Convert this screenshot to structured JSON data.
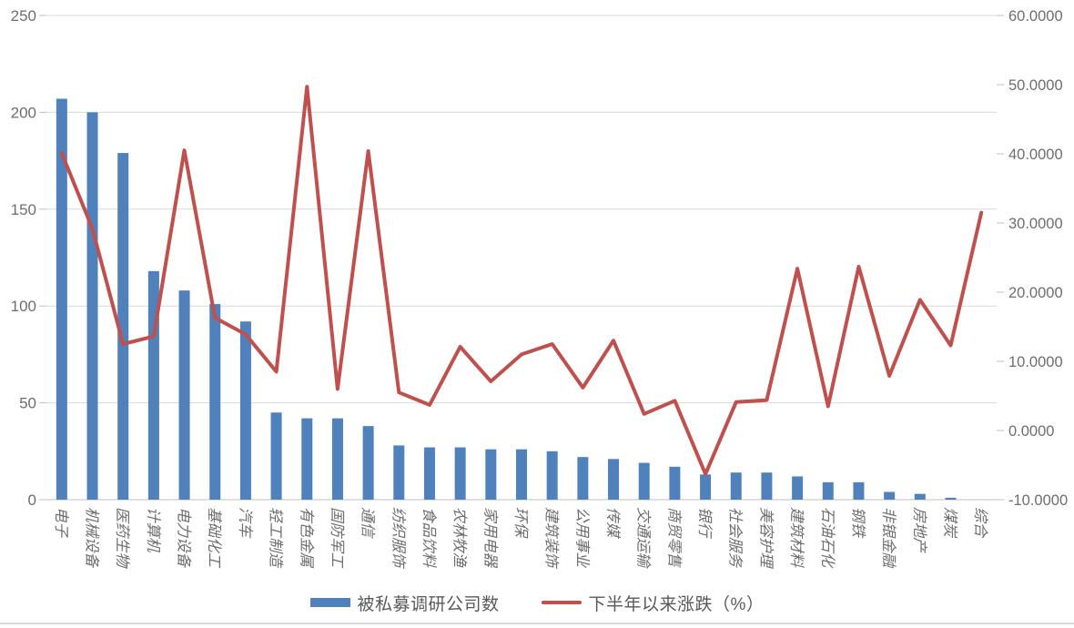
{
  "chart_data": {
    "type": "bar",
    "subtype": "combo-bar-line-dual-axis",
    "categories": [
      "电子",
      "机械设备",
      "医药生物",
      "计算机",
      "电力设备",
      "基础化工",
      "汽车",
      "轻工制造",
      "有色金属",
      "国防军工",
      "通信",
      "纺织服饰",
      "食品饮料",
      "农林牧渔",
      "家用电器",
      "环保",
      "建筑装饰",
      "公用事业",
      "传媒",
      "交通运输",
      "商贸零售",
      "银行",
      "社会服务",
      "美容护理",
      "建筑材料",
      "石油石化",
      "钢铁",
      "非银金融",
      "房地产",
      "煤炭",
      "综合"
    ],
    "series": [
      {
        "name": "被私募调研公司数",
        "type": "bar",
        "axis": "left",
        "color": "#4F81BD",
        "values": [
          207,
          200,
          179,
          118,
          108,
          101,
          92,
          45,
          42,
          42,
          38,
          28,
          27,
          27,
          26,
          26,
          25,
          22,
          21,
          19,
          17,
          13,
          14,
          14,
          12,
          9,
          9,
          4,
          3,
          1,
          0
        ]
      },
      {
        "name": "下半年以来涨跌（%）",
        "type": "line",
        "axis": "right",
        "color": "#C0504D",
        "values": [
          40.1,
          29.2,
          12.5,
          13.6,
          40.5,
          16.3,
          13.9,
          8.5,
          49.7,
          6.0,
          40.4,
          5.5,
          3.7,
          12.1,
          7.1,
          11.0,
          12.5,
          6.2,
          13.0,
          2.4,
          4.3,
          -6.3,
          4.1,
          4.4,
          23.4,
          3.5,
          23.7,
          7.9,
          18.9,
          12.3,
          31.5
        ]
      }
    ],
    "title": "",
    "xlabel": "",
    "ylabel_left": "",
    "ylabel_right": "",
    "left_axis": {
      "min": 0,
      "max": 250,
      "step": 50,
      "tick_labels": [
        "250",
        "200",
        "150",
        "100",
        "50",
        "0"
      ]
    },
    "right_axis": {
      "min": -10,
      "max": 60,
      "step": 10,
      "tick_labels": [
        "60.0000",
        "50.0000",
        "40.0000",
        "30.0000",
        "20.0000",
        "10.0000",
        "0.0000",
        "-10.0000"
      ]
    },
    "grid": true,
    "legend_position": "bottom",
    "x_label_rotation_deg": 90
  },
  "legend": {
    "bar_label": "被私募调研公司数",
    "line_label": "下半年以来涨跌（%）"
  },
  "colors": {
    "bar": "#4F81BD",
    "line": "#C0504D",
    "gridline": "#D9D9D9",
    "axis_line": "#C0C0C0",
    "tick_mark": "#BFBFBF",
    "axis_text": "#6E6E6E",
    "legend_text": "#595959",
    "background": "#FFFFFF"
  }
}
